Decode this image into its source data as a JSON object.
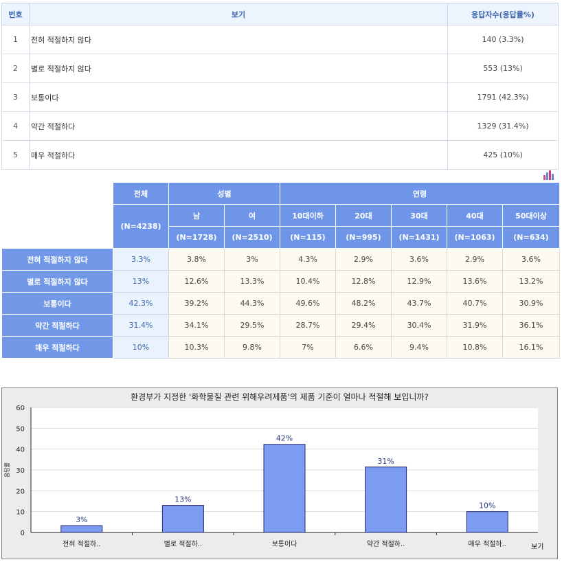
{
  "summary": {
    "headers": {
      "no": "번호",
      "label": "보기",
      "value": "응답자수(응답률%)"
    },
    "rows": [
      {
        "no": "1",
        "label": "전혀 적절하지 않다",
        "value": "140 (3.3%)"
      },
      {
        "no": "2",
        "label": "별로 적절하지 않다",
        "value": "553 (13%)"
      },
      {
        "no": "3",
        "label": "보통이다",
        "value": "1791 (42.3%)"
      },
      {
        "no": "4",
        "label": "약간 적절하다",
        "value": "1329 (31.4%)"
      },
      {
        "no": "5",
        "label": "매우 적절하다",
        "value": "425 (10%)"
      }
    ]
  },
  "crosstab": {
    "total": {
      "label": "전체",
      "n": "(N=4238)"
    },
    "groups": [
      {
        "label": "성별",
        "span": 2
      },
      {
        "label": "연령",
        "span": 5
      }
    ],
    "columns": [
      {
        "label": "남",
        "n": "(N=1728)"
      },
      {
        "label": "여",
        "n": "(N=2510)"
      },
      {
        "label": "10대이하",
        "n": "(N=115)"
      },
      {
        "label": "20대",
        "n": "(N=995)"
      },
      {
        "label": "30대",
        "n": "(N=1431)"
      },
      {
        "label": "40대",
        "n": "(N=1063)"
      },
      {
        "label": "50대이상",
        "n": "(N=634)"
      }
    ],
    "rows": [
      {
        "label": "전혀 적절하지 않다",
        "total": "3.3%",
        "values": [
          "3.8%",
          "3%",
          "4.3%",
          "2.9%",
          "3.6%",
          "2.9%",
          "3.6%"
        ]
      },
      {
        "label": "별로 적절하지 않다",
        "total": "13%",
        "values": [
          "12.6%",
          "13.3%",
          "10.4%",
          "12.8%",
          "12.9%",
          "13.6%",
          "13.2%"
        ]
      },
      {
        "label": "보통이다",
        "total": "42.3%",
        "values": [
          "39.2%",
          "44.3%",
          "49.6%",
          "48.2%",
          "43.7%",
          "40.7%",
          "30.9%"
        ]
      },
      {
        "label": "약간 적절하다",
        "total": "31.4%",
        "values": [
          "34.1%",
          "29.5%",
          "28.7%",
          "29.4%",
          "30.4%",
          "31.9%",
          "36.1%"
        ]
      },
      {
        "label": "매우 적절하다",
        "total": "10%",
        "values": [
          "10.3%",
          "9.8%",
          "7%",
          "6.6%",
          "9.4%",
          "10.8%",
          "16.1%"
        ]
      }
    ]
  },
  "chart_data": {
    "type": "bar",
    "title": "환경부가 지정한 '화학물질 관련 위해우려제품'의 제품 기준이 얼마나 적절해 보입니까?",
    "categories": [
      "전혀 적절하..",
      "별로 적절하..",
      "보통이다",
      "약간 적절하..",
      "매우 적절하.."
    ],
    "values": [
      3.3,
      13,
      42.3,
      31.4,
      10
    ],
    "data_labels": [
      "3%",
      "13%",
      "42%",
      "31%",
      "10%"
    ],
    "xlabel": "보기",
    "ylabel": "응답률",
    "ylim": [
      0,
      60
    ],
    "yticks": [
      0,
      10,
      20,
      30,
      40,
      50,
      60
    ],
    "grid": true,
    "bar_color": "#7b9cf0",
    "bar_border": "#2a2a6a"
  },
  "colors": {
    "header_blue": "#6f95e8",
    "header_text": "#3a66b0"
  }
}
